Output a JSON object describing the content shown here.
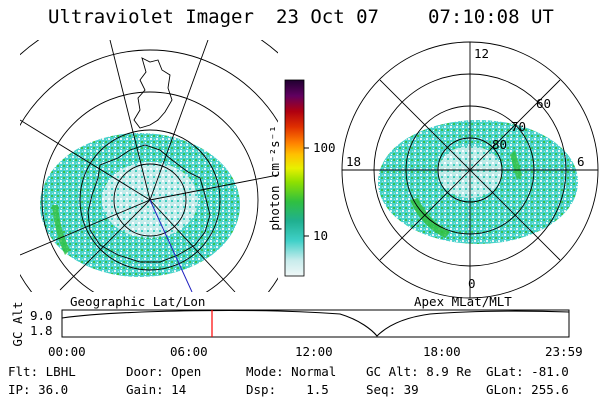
{
  "header": {
    "instrument": "Ultraviolet Imager",
    "date": "23 Oct 07",
    "time": "07:10:08 UT"
  },
  "geo_panel": {
    "label": "Geographic Lat/Lon"
  },
  "apex_panel": {
    "label": "Apex MLat/MLT",
    "mlt_labels": {
      "top": "12",
      "bottom": "0",
      "left": "18",
      "right": "6"
    },
    "lat_labels": [
      "60",
      "70",
      "80"
    ]
  },
  "colorbar": {
    "title": "photon cm⁻²s⁻¹",
    "ticks": [
      "100",
      "10"
    ],
    "scale": "log",
    "colors": [
      "#2a0033",
      "#500070",
      "#7a0040",
      "#b00010",
      "#e03000",
      "#ff8000",
      "#ffc000",
      "#e8f000",
      "#90e000",
      "#30c040",
      "#20b090",
      "#40d0c8",
      "#a0e8e8",
      "#e8f4f4"
    ]
  },
  "timeline": {
    "ylabel": "GC Alt",
    "yticks": [
      "9.0",
      "1.8"
    ],
    "xticks": [
      "00:00",
      "06:00",
      "12:00",
      "18:00",
      "23:59"
    ],
    "marker_time": "07:10",
    "marker_color": "#ff0000"
  },
  "info": {
    "row1": [
      {
        "k": "Flt:",
        "v": "LBHL"
      },
      {
        "k": "Door:",
        "v": "Open"
      },
      {
        "k": "Mode:",
        "v": "Normal"
      },
      {
        "k": "GC Alt:",
        "v": "8.9 Re"
      },
      {
        "k": "GLat:",
        "v": "-81.0"
      }
    ],
    "row2": [
      {
        "k": "IP:",
        "v": "36.0"
      },
      {
        "k": "Gain:",
        "v": "14"
      },
      {
        "k": "Dsp:",
        "v": "1.5"
      },
      {
        "k": "Seq:",
        "v": "39"
      },
      {
        "k": "GLon:",
        "v": "255.6"
      }
    ]
  }
}
